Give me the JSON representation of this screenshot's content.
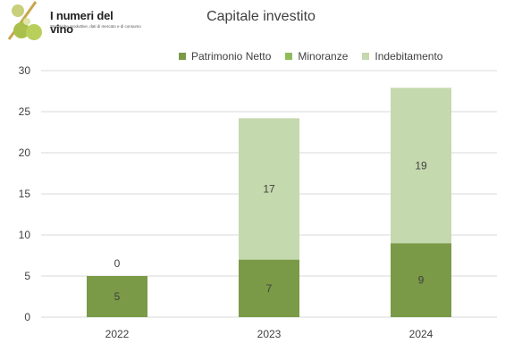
{
  "logo": {
    "title": "I numeri del vino",
    "subtitle": "Statistiche produttive, dati di mercato e di consumo"
  },
  "chart_data": {
    "type": "bar",
    "stacked": true,
    "title": "Capitale investito",
    "categories": [
      "2022",
      "2023",
      "2024"
    ],
    "series": [
      {
        "name": "Patrimonio Netto",
        "values": [
          5,
          7,
          9
        ],
        "labels": [
          "5",
          "7",
          "9"
        ],
        "color": "#7a9a47"
      },
      {
        "name": "Minoranze",
        "values": [
          0,
          0,
          0
        ],
        "labels": [
          "0",
          "",
          ""
        ],
        "color": "#8fbc5a"
      },
      {
        "name": "Indebitamento",
        "values": [
          0,
          17.2,
          18.9
        ],
        "labels": [
          "",
          "17",
          "19"
        ],
        "color": "#c5d9ae"
      }
    ],
    "yticks": [
      "0",
      "5",
      "10",
      "15",
      "20",
      "25",
      "30"
    ],
    "ylim": [
      0,
      30
    ],
    "grid": true,
    "legend_position": "top"
  }
}
